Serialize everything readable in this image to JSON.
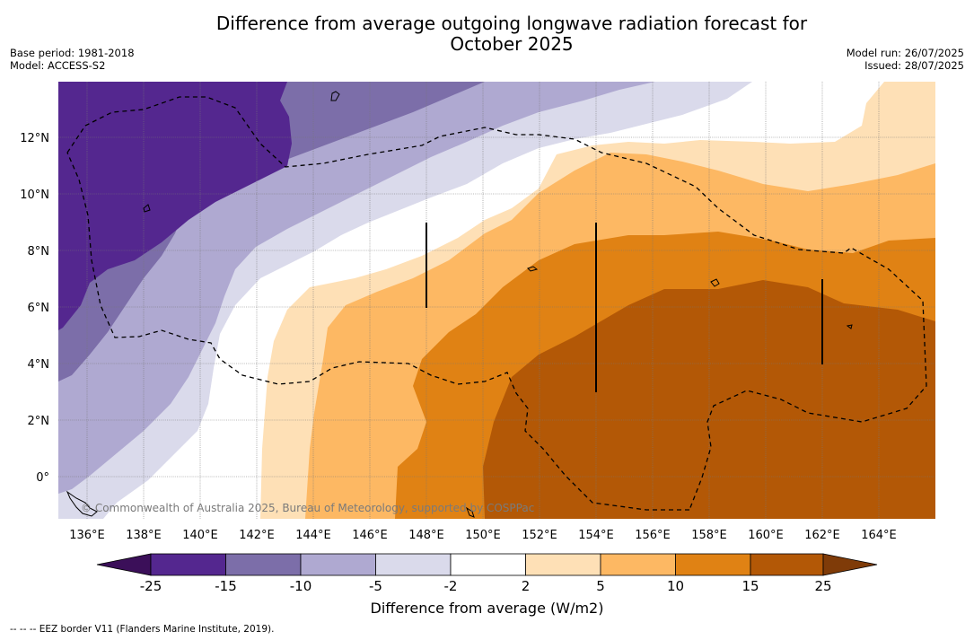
{
  "title_line1": "Difference from average outgoing longwave radiation forecast for",
  "title_line2": "October 2025",
  "base_period": "Base period: 1981-2018",
  "model": "Model: ACCESS-S2",
  "model_run": "Model run: 26/07/2025",
  "issued": "Issued: 28/07/2025",
  "copyright": "© Commonwealth of Australia 2025, Bureau of Meteorology, supported by COSPPac",
  "legend_note": "--  --  -- EEZ border V11 (Flanders Marine Institute, 2019).",
  "lon_labels": [
    "136°E",
    "138°E",
    "140°E",
    "142°E",
    "144°E",
    "146°E",
    "148°E",
    "150°E",
    "152°E",
    "154°E",
    "156°E",
    "158°E",
    "160°E",
    "162°E",
    "164°E"
  ],
  "lat_labels": [
    "12°N",
    "10°N",
    "8°N",
    "6°N",
    "4°N",
    "2°N",
    "0°"
  ],
  "colorbar": {
    "title": "Difference from average (W/m2)",
    "tick_labels": [
      "-25",
      "-15",
      "-10",
      "-5",
      "-2",
      "2",
      "5",
      "10",
      "15",
      "25"
    ],
    "colors": {
      "below": "#3b0f59",
      "lt_m15": "#54278f",
      "m15_m10": "#7c6ea9",
      "m10_m5": "#afa9d1",
      "m5_m2": "#dadaeb",
      "m2_2": "#ffffff",
      "p2_5": "#fee0b6",
      "p5_10": "#fdb863",
      "p10_15": "#e08214",
      "p15_25": "#b35806",
      "above": "#7f3b08"
    }
  }
}
